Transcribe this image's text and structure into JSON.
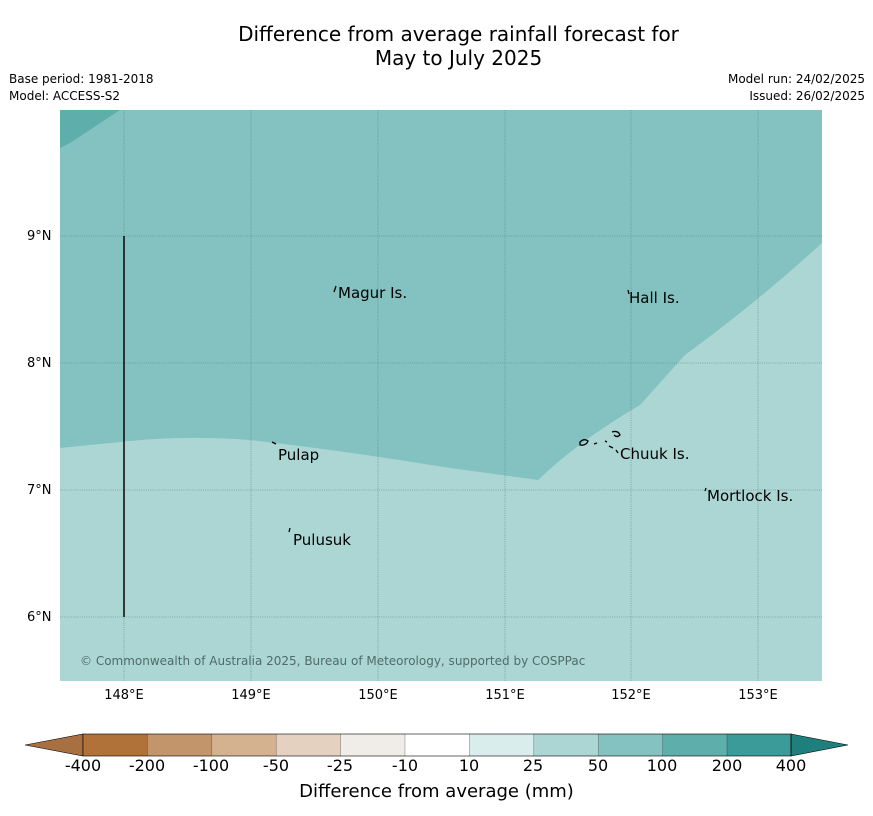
{
  "title_line1": "Difference from average rainfall forecast for",
  "title_line2": "May to July 2025",
  "base_period": "Base period: 1981-2018",
  "model": "Model: ACCESS-S2",
  "model_run": "Model run: 24/02/2025",
  "issued": "Issued: 26/02/2025",
  "lat_labels": [
    "9°N",
    "8°N",
    "7°N",
    "6°N"
  ],
  "lon_labels": [
    "148°E",
    "149°E",
    "150°E",
    "151°E",
    "152°E",
    "153°E"
  ],
  "places": {
    "magur": "Magur Is.",
    "hall": "Hall Is.",
    "pulap": "Pulap",
    "chuuk": "Chuuk Is.",
    "mortlock": "Mortlock Is.",
    "pulusuk": "Pulusuk"
  },
  "copyright": "© Commonwealth of Australia 2025, Bureau of Meteorology, supported by COSPPac",
  "colorbar": {
    "labels": [
      "-400",
      "-200",
      "-100",
      "-50",
      "-25",
      "-10",
      "10",
      "25",
      "50",
      "100",
      "200",
      "400"
    ],
    "colors": [
      "#a87040",
      "#b07238",
      "#c3956a",
      "#d4b290",
      "#e4d1bf",
      "#f0ede8",
      "#ffffff",
      "#d9eeec",
      "#acd6d4",
      "#83c2c0",
      "#5eaeac",
      "#3a9b98",
      "#1f7f7c"
    ],
    "title": "Difference from average (mm)"
  },
  "map_colors": {
    "band_25_50": "#acd6d4",
    "band_50_100": "#83c2c0",
    "band_100_200": "#5eaeac"
  }
}
